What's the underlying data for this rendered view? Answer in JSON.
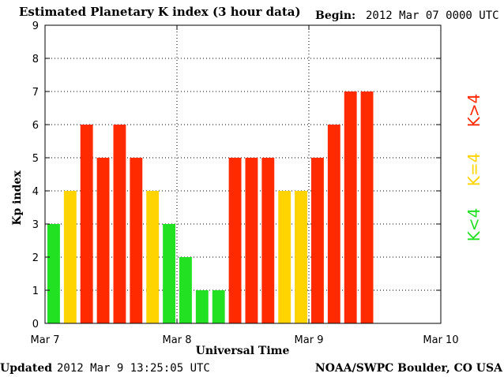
{
  "header": {
    "title": "Estimated Planetary K index (3 hour data)",
    "begin_label": "Begin:",
    "begin_value": "2012 Mar 07 0000 UTC"
  },
  "footer": {
    "updated_label": "Updated",
    "updated_value": "2012 Mar  9 13:25:05 UTC",
    "source": "NOAA/SWPC Boulder, CO USA"
  },
  "legend": [
    {
      "label": "K>4",
      "color": "#ff2a00"
    },
    {
      "label": "K=4",
      "color": "#ffd400"
    },
    {
      "label": "K<4",
      "color": "#22e022"
    }
  ],
  "colors": {
    "low": "#22e022",
    "moderate": "#ffd400",
    "high": "#ff2a00"
  },
  "chart_data": {
    "type": "bar",
    "title": "Estimated Planetary K index (3 hour data)",
    "xlabel": "Universal Time",
    "ylabel": "Kp index",
    "x_ticks": [
      "Mar 7",
      "Mar 8",
      "Mar 9",
      "Mar 10"
    ],
    "y_ticks": [
      0,
      1,
      2,
      3,
      4,
      5,
      6,
      7,
      8,
      9
    ],
    "ylim": [
      0,
      9
    ],
    "interval_hours": 3,
    "values": [
      3,
      4,
      6,
      5,
      6,
      5,
      4,
      3,
      2,
      1,
      1,
      5,
      5,
      5,
      4,
      4,
      5,
      6,
      7,
      7
    ],
    "grid": "dotted at each day and each Kp integer",
    "color_rule": "green K<4, yellow K=4, red K>4"
  }
}
